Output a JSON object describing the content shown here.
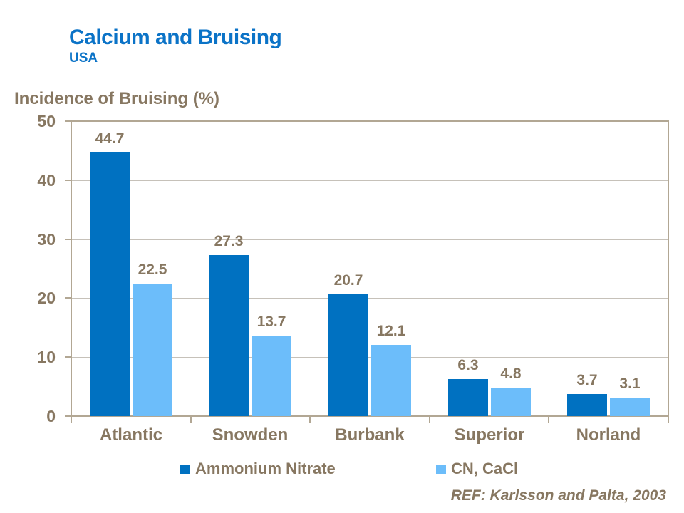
{
  "chart_data": {
    "type": "bar",
    "title": "Calcium and Bruising",
    "subtitle": "USA",
    "ylabel": "Incidence of Bruising (%)",
    "xlabel": "",
    "categories": [
      "Atlantic",
      "Snowden",
      "Burbank",
      "Superior",
      "Norland"
    ],
    "series": [
      {
        "name": "Ammonium Nitrate",
        "color": "#0071C1",
        "values": [
          44.7,
          27.3,
          20.7,
          6.3,
          3.7
        ]
      },
      {
        "name": "CN, CaCl",
        "color": "#6CBDFA",
        "values": [
          22.5,
          13.7,
          12.1,
          4.8,
          3.1
        ]
      }
    ],
    "ylim": [
      0,
      50
    ],
    "yticks": [
      0,
      10,
      20,
      30,
      40,
      50
    ],
    "grid": true,
    "data_labels": true,
    "legend_position": "bottom"
  },
  "footer": {
    "ref": "REF: Karlsson and Palta, 2003"
  },
  "colors": {
    "title_blue": "#0B73C7",
    "series1_blue": "#0071C1",
    "series2_light_blue": "#6CBDFA",
    "text_brown": "#877761",
    "axis_line": "#B2A794",
    "gridline": "#C6C1B9",
    "background": "#FFFFFF"
  }
}
